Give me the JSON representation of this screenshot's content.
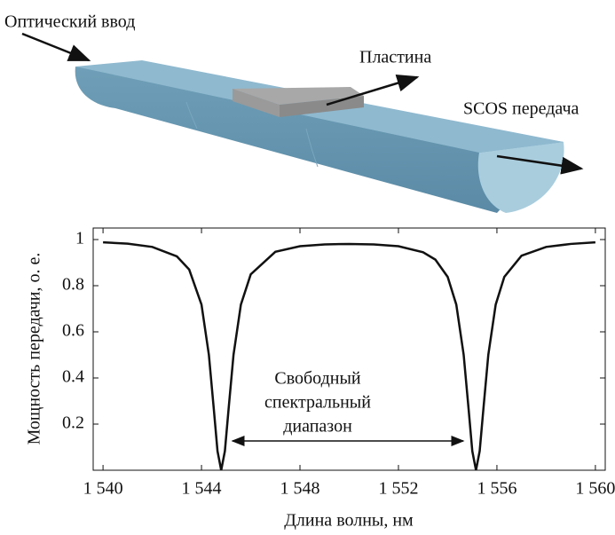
{
  "diagram": {
    "input_label": "Оптический ввод",
    "plate_label": "Пластина",
    "output_label": "SCOS передача"
  },
  "chart_data": {
    "type": "line",
    "ylabel": "Мощность передачи, о. е.",
    "xlabel": "Длина волны, нм",
    "annotation": [
      "Свободный",
      "спектральный",
      "диапазон"
    ],
    "color": "#111111",
    "x": [
      1540,
      1541,
      1542,
      1543,
      1543.5,
      1544,
      1544.3,
      1544.5,
      1544.65,
      1544.8,
      1544.95,
      1545.1,
      1545.3,
      1545.6,
      1546,
      1547,
      1548,
      1549,
      1550,
      1551,
      1552,
      1553,
      1553.5,
      1554,
      1554.35,
      1554.65,
      1554.85,
      1555,
      1555.15,
      1555.3,
      1555.45,
      1555.65,
      1555.95,
      1556.3,
      1557,
      1558,
      1559,
      1560
    ],
    "values": [
      0.988,
      0.982,
      0.968,
      0.927,
      0.87,
      0.718,
      0.5,
      0.265,
      0.083,
      0,
      0.083,
      0.265,
      0.5,
      0.718,
      0.849,
      0.947,
      0.971,
      0.979,
      0.981,
      0.979,
      0.971,
      0.945,
      0.913,
      0.838,
      0.718,
      0.5,
      0.265,
      0.083,
      0,
      0.083,
      0.265,
      0.5,
      0.718,
      0.838,
      0.93,
      0.968,
      0.981,
      0.988
    ],
    "xlim": [
      1539.6,
      1560.4
    ],
    "ylim": [
      0,
      1.05
    ],
    "xticks": [
      {
        "value": 1540,
        "label": "1 540"
      },
      {
        "value": 1544,
        "label": "1 544"
      },
      {
        "value": 1548,
        "label": "1 548"
      },
      {
        "value": 1552,
        "label": "1 552"
      },
      {
        "value": 1556,
        "label": "1 556"
      },
      {
        "value": 1560,
        "label": "1 560"
      }
    ],
    "yticks": [
      0.2,
      0.4,
      0.6,
      0.8,
      1
    ]
  }
}
